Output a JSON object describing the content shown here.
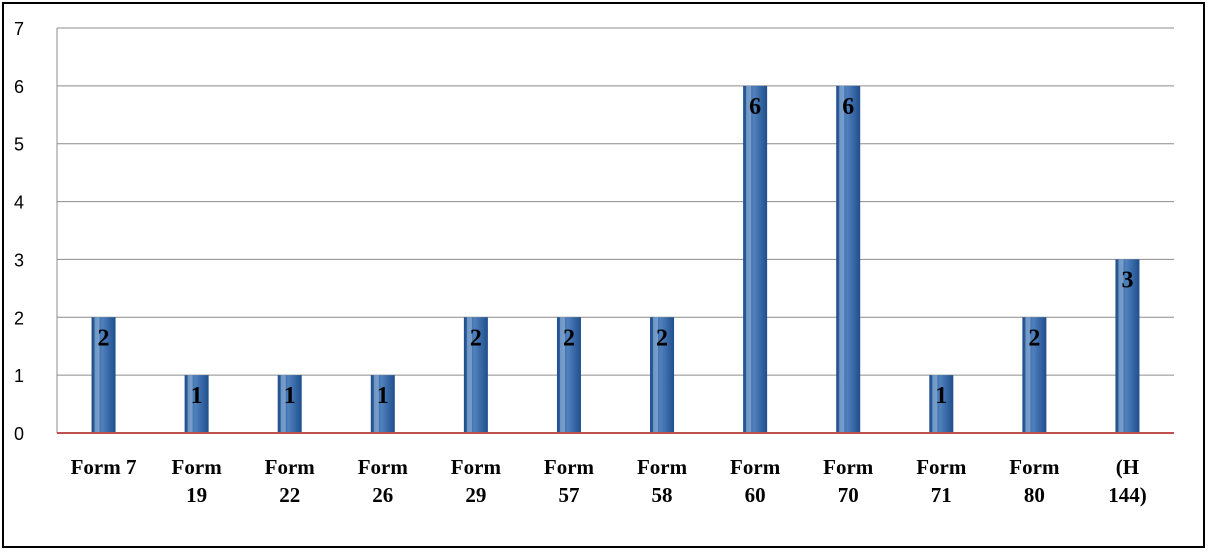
{
  "chart_data": {
    "type": "bar",
    "categories": [
      [
        "Form 7"
      ],
      [
        "Form",
        "19"
      ],
      [
        "Form",
        "22"
      ],
      [
        "Form",
        "26"
      ],
      [
        "Form",
        "29"
      ],
      [
        "Form",
        "57"
      ],
      [
        "Form",
        "58"
      ],
      [
        "Form",
        "60"
      ],
      [
        "Form",
        "70"
      ],
      [
        "Form",
        "71"
      ],
      [
        "Form",
        "80"
      ],
      [
        "(H",
        "144)"
      ]
    ],
    "values": [
      2,
      1,
      1,
      1,
      2,
      2,
      2,
      6,
      6,
      1,
      2,
      3
    ],
    "data_labels": [
      "2",
      "1",
      "1",
      "1",
      "2",
      "2",
      "2",
      "6",
      "6",
      "1",
      "2",
      "3"
    ],
    "y_ticks": [
      "0",
      "1",
      "2",
      "3",
      "4",
      "5",
      "6",
      "7"
    ],
    "ylim": [
      0,
      7
    ],
    "grid": true,
    "legend": "none",
    "colors": {
      "bar_dark": "#1f4e8c",
      "bar_mid": "#4f81bd",
      "bar_light": "#a8c4e6",
      "gridline": "#8c8c8c",
      "baseline": "#c0504d"
    }
  }
}
